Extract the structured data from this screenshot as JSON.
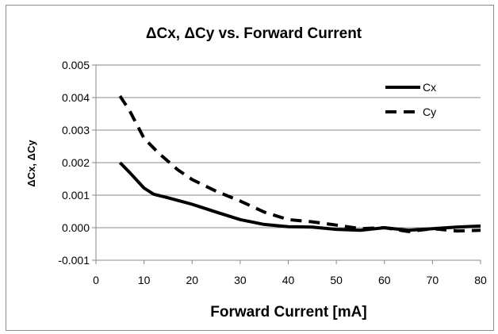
{
  "chart_data": {
    "type": "line",
    "title": "ΔCx, ΔCy vs. Forward Current",
    "xlabel": "Forward Current [mA]",
    "ylabel": "ΔCx, ΔCy",
    "xlim": [
      0,
      80
    ],
    "ylim": [
      -0.001,
      0.005
    ],
    "x_ticks": [
      0,
      10,
      20,
      30,
      40,
      50,
      60,
      70,
      80
    ],
    "x_tick_labels": [
      "0",
      "10",
      "20",
      "30",
      "40",
      "50",
      "60",
      "70",
      "80"
    ],
    "y_ticks": [
      0.005,
      0.004,
      0.003,
      0.002,
      0.001,
      0.0,
      -0.001
    ],
    "y_tick_labels": [
      "0.005",
      "0.004",
      "0.003",
      "0.002",
      "0.001",
      "0.000",
      "-0.001"
    ],
    "grid": "horizontal",
    "legend": "top-right",
    "series": [
      {
        "name": "Cx",
        "style": "solid",
        "color": "#000000",
        "x": [
          5,
          7,
          10,
          12,
          15,
          20,
          25,
          30,
          35,
          40,
          45,
          50,
          55,
          60,
          65,
          70,
          75,
          80
        ],
        "y": [
          0.002,
          0.0017,
          0.00122,
          0.00103,
          0.00092,
          0.00072,
          0.00048,
          0.00025,
          0.0001,
          3e-05,
          2e-05,
          -5e-05,
          -8e-05,
          0.0,
          -8e-05,
          -3e-05,
          2e-05,
          5e-05
        ]
      },
      {
        "name": "Cy",
        "style": "dashed",
        "color": "#000000",
        "x": [
          5,
          7,
          10,
          13,
          17,
          20,
          25,
          30,
          35,
          40,
          45,
          50,
          55,
          60,
          65,
          70,
          75,
          80
        ],
        "y": [
          0.00405,
          0.0036,
          0.00275,
          0.0023,
          0.00178,
          0.00148,
          0.00112,
          0.00082,
          0.00048,
          0.00025,
          0.00018,
          8e-05,
          -3e-05,
          0.0,
          -0.00012,
          -3e-05,
          -0.0001,
          -8e-05
        ]
      }
    ]
  }
}
